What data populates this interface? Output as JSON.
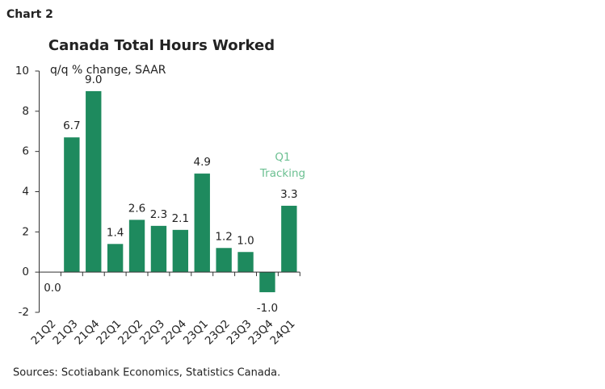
{
  "header": "Chart 2",
  "chart_data": {
    "type": "bar",
    "title": "Canada Total Hours Worked",
    "subtitle": "q/q % change, SAAR",
    "categories": [
      "21Q2",
      "21Q3",
      "21Q4",
      "22Q1",
      "22Q2",
      "22Q3",
      "22Q4",
      "23Q1",
      "23Q2",
      "23Q3",
      "23Q4",
      "24Q1"
    ],
    "values": [
      0,
      6.7,
      9.0,
      1.4,
      2.6,
      2.3,
      2.1,
      4.9,
      1.2,
      1.0,
      -1.0,
      3.3
    ],
    "value_labels": [
      "0.0",
      "6.7",
      "9.0",
      "1.4",
      "2.6",
      "2.3",
      "2.1",
      "4.9",
      "1.2",
      "1.0",
      "-1.0",
      "3.3"
    ],
    "color": "#1e8a5e",
    "ylim": [
      -2,
      10
    ],
    "yticks": [
      -2,
      0,
      2,
      4,
      6,
      8,
      10
    ],
    "annotation": {
      "lines": [
        "Q1",
        "Tracking"
      ],
      "color": "#6cc092"
    },
    "source": "Sources: Scotiabank Economics, Statistics Canada."
  }
}
